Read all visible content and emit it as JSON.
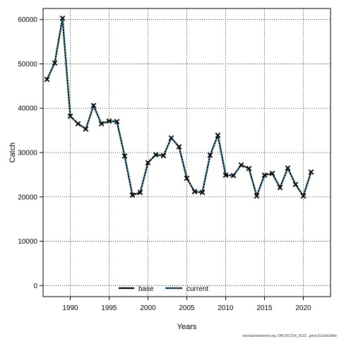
{
  "chart_data": {
    "type": "line",
    "title": "",
    "xlabel": "Years",
    "ylabel": "Catch",
    "xlim": [
      1986.5,
      2023.5
    ],
    "ylim": [
      -2500,
      62500
    ],
    "x_ticks": [
      1990,
      1995,
      2000,
      2005,
      2010,
      2015,
      2020
    ],
    "y_ticks": [
      0,
      10000,
      20000,
      30000,
      40000,
      50000,
      60000
    ],
    "grid": true,
    "legend_position": "bottom-center",
    "x": [
      1987,
      1988,
      1989,
      1990,
      1991,
      1992,
      1993,
      1994,
      1995,
      1996,
      1997,
      1998,
      1999,
      2000,
      2001,
      2002,
      2003,
      2004,
      2005,
      2006,
      2007,
      2008,
      2009,
      2010,
      2011,
      2012,
      2013,
      2014,
      2015,
      2016,
      2017,
      2018,
      2019,
      2020,
      2021
    ],
    "series": [
      {
        "name": "base",
        "color": "#000000",
        "style": "solid",
        "values": [
          46500,
          50200,
          60300,
          38200,
          36500,
          35300,
          40600,
          36500,
          37100,
          37000,
          29200,
          20400,
          21000,
          27700,
          29500,
          29300,
          33300,
          31300,
          24200,
          21200,
          21000,
          29400,
          33900,
          24900,
          24800,
          27200,
          26400,
          20200,
          24900,
          25300,
          22100,
          26500,
          22800,
          20200,
          25600
        ]
      },
      {
        "name": "current",
        "color": "#2f8fb5",
        "style": "dotted",
        "marker": "x",
        "values": [
          46500,
          50200,
          60300,
          38200,
          36500,
          35300,
          40600,
          36500,
          37100,
          37000,
          29200,
          20400,
          21000,
          27700,
          29500,
          29300,
          33300,
          31300,
          24200,
          21200,
          21000,
          29400,
          33900,
          24900,
          24800,
          27200,
          26400,
          20200,
          24900,
          25300,
          22100,
          26500,
          22800,
          20200,
          25600
        ]
      }
    ]
  },
  "footer_text": "stockassessment.org, DHL561214_2022, .git:ec2c2a0c6dde"
}
